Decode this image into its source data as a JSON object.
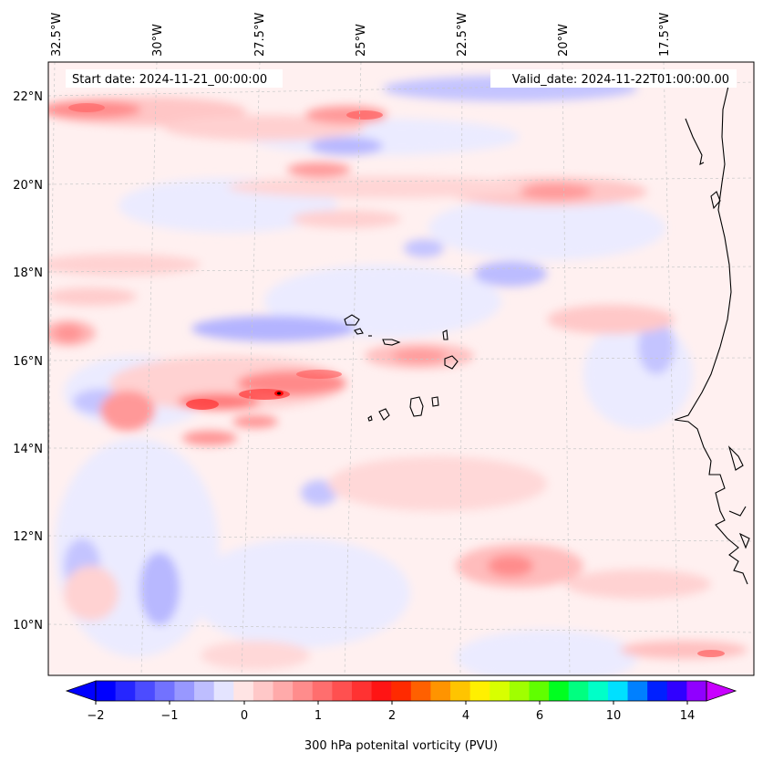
{
  "header": {
    "start_date": "Start date: 2024-11-21_00:00:00",
    "valid_date": "Valid_date: 2024-11-22T01:00:00.00"
  },
  "lon_labels": [
    "32.5°W",
    "30°W",
    "27.5°W",
    "25°W",
    "22.5°W",
    "20°W",
    "17.5°W"
  ],
  "lat_labels": [
    "22°N",
    "20°N",
    "18°N",
    "16°N",
    "14°N",
    "12°N",
    "10°N"
  ],
  "colorbar": {
    "label": "300 hPa potenital vorticity (PVU)",
    "tick_labels": [
      "−2",
      "−1",
      "0",
      "1",
      "2",
      "4",
      "6",
      "10",
      "14"
    ],
    "colors": [
      "#0000ff",
      "#2626ff",
      "#4c4cff",
      "#7272ff",
      "#9898ff",
      "#bebeff",
      "#e4e4ff",
      "#ffe4e4",
      "#ffc8c8",
      "#ffaaaa",
      "#ff8c8c",
      "#ff6e6e",
      "#ff5050",
      "#ff3232",
      "#ff1414",
      "#ff2a00",
      "#ff6000",
      "#ff9400",
      "#ffc400",
      "#fff000",
      "#d8ff00",
      "#a0ff00",
      "#60ff00",
      "#00ff20",
      "#00ff80",
      "#00ffc8",
      "#00e0ff",
      "#0080ff",
      "#0020ff",
      "#3000ff",
      "#9000ff"
    ],
    "under_color": "#0000ff",
    "over_color": "#c800ff"
  },
  "map_colors": {
    "background": "#fff0f0",
    "light_blue": "#e8e8ff",
    "blue": "#c8c8ff",
    "dark_blue": "#9898ff",
    "pink": "#ffd2d2",
    "red": "#ff9a9a",
    "strong_red": "#ff4a4a",
    "coastline": "#000000",
    "grid": "#c8c8c8"
  }
}
